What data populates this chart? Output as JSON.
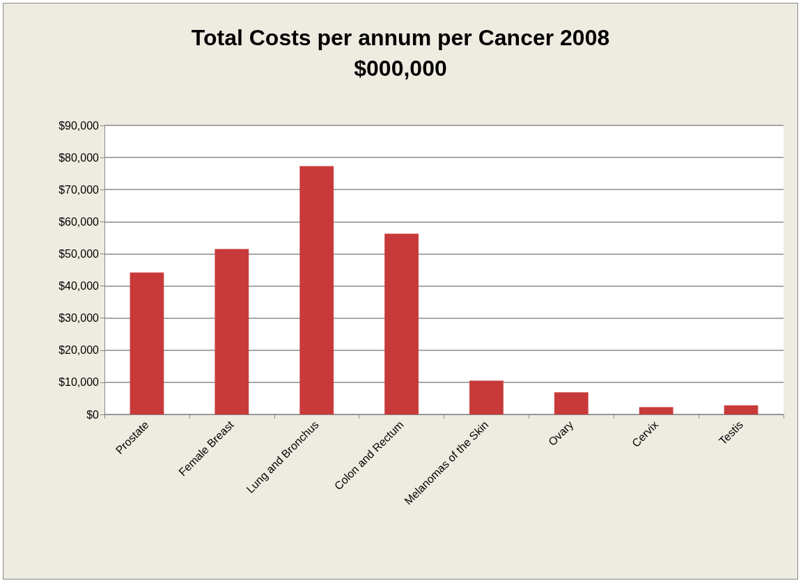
{
  "chart_data": {
    "type": "bar",
    "title": "Total Costs per annum per Cancer 2008\n$000,000",
    "categories": [
      "Prostate",
      "Female Breast",
      "Lung and Bronchus",
      "Colon and Rectum",
      "Melanomas of the Skin",
      "Ovary",
      "Cervix",
      "Testis"
    ],
    "values": [
      44200,
      51500,
      77300,
      56300,
      10500,
      6900,
      2300,
      2800
    ],
    "color": "#c83a3a",
    "ylim": [
      0,
      90000
    ],
    "yticks": [
      {
        "value": 0,
        "label": "$0"
      },
      {
        "value": 10000,
        "label": "$10,000"
      },
      {
        "value": 20000,
        "label": "$20,000"
      },
      {
        "value": 30000,
        "label": "$30,000"
      },
      {
        "value": 40000,
        "label": "$40,000"
      },
      {
        "value": 50000,
        "label": "$50,000"
      },
      {
        "value": 60000,
        "label": "$60,000"
      },
      {
        "value": 70000,
        "label": "$70,000"
      },
      {
        "value": 80000,
        "label": "$80,000"
      },
      {
        "value": 90000,
        "label": "$90,000"
      }
    ],
    "grid": "y"
  }
}
